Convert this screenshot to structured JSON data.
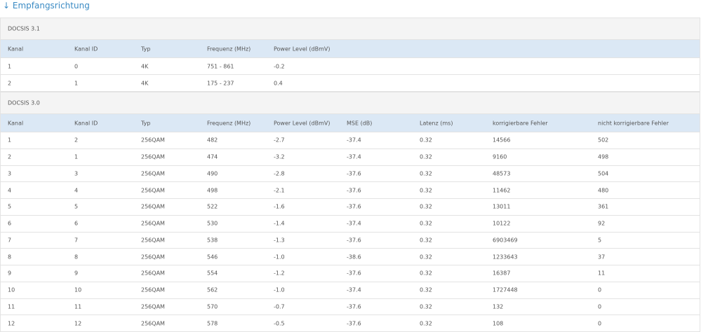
{
  "title": "↓ Empfangsrichtung",
  "sections": [
    {
      "name": "DOCSIS 3.1",
      "columns": [
        "Kanal",
        "Kanal ID",
        "Typ",
        "Frequenz (MHz)",
        "Power Level (dBmV)"
      ],
      "rows": [
        [
          "1",
          "0",
          "4K",
          "751 - 861",
          "-0.2"
        ],
        [
          "2",
          "1",
          "4K",
          "175 - 237",
          "0.4"
        ]
      ]
    },
    {
      "name": "DOCSIS 3.0",
      "columns": [
        "Kanal",
        "Kanal ID",
        "Typ",
        "Frequenz (MHz)",
        "Power Level (dBmV)",
        "MSE (dB)",
        "Latenz (ms)",
        "korrigierbare Fehler",
        "nicht korrigierbare Fehler"
      ],
      "rows": [
        [
          "1",
          "2",
          "256QAM",
          "482",
          "-2.7",
          "-37.4",
          "0.32",
          "14566",
          "502"
        ],
        [
          "2",
          "1",
          "256QAM",
          "474",
          "-3.2",
          "-37.4",
          "0.32",
          "9160",
          "498"
        ],
        [
          "3",
          "3",
          "256QAM",
          "490",
          "-2.8",
          "-37.6",
          "0.32",
          "48573",
          "504"
        ],
        [
          "4",
          "4",
          "256QAM",
          "498",
          "-2.1",
          "-37.6",
          "0.32",
          "11462",
          "480"
        ],
        [
          "5",
          "5",
          "256QAM",
          "522",
          "-1.6",
          "-37.6",
          "0.32",
          "13011",
          "361"
        ],
        [
          "6",
          "6",
          "256QAM",
          "530",
          "-1.4",
          "-37.4",
          "0.32",
          "10122",
          "92"
        ],
        [
          "7",
          "7",
          "256QAM",
          "538",
          "-1.3",
          "-37.6",
          "0.32",
          "6903469",
          "5"
        ],
        [
          "8",
          "8",
          "256QAM",
          "546",
          "-1.0",
          "-38.6",
          "0.32",
          "1233643",
          "37"
        ],
        [
          "9",
          "9",
          "256QAM",
          "554",
          "-1.2",
          "-37.6",
          "0.32",
          "16387",
          "11"
        ],
        [
          "10",
          "10",
          "256QAM",
          "562",
          "-1.0",
          "-37.4",
          "0.32",
          "1727448",
          "0"
        ],
        [
          "11",
          "11",
          "256QAM",
          "570",
          "-0.7",
          "-37.6",
          "0.32",
          "132",
          "0"
        ],
        [
          "12",
          "12",
          "256QAM",
          "578",
          "-0.5",
          "-37.6",
          "0.32",
          "108",
          "0"
        ]
      ]
    }
  ]
}
